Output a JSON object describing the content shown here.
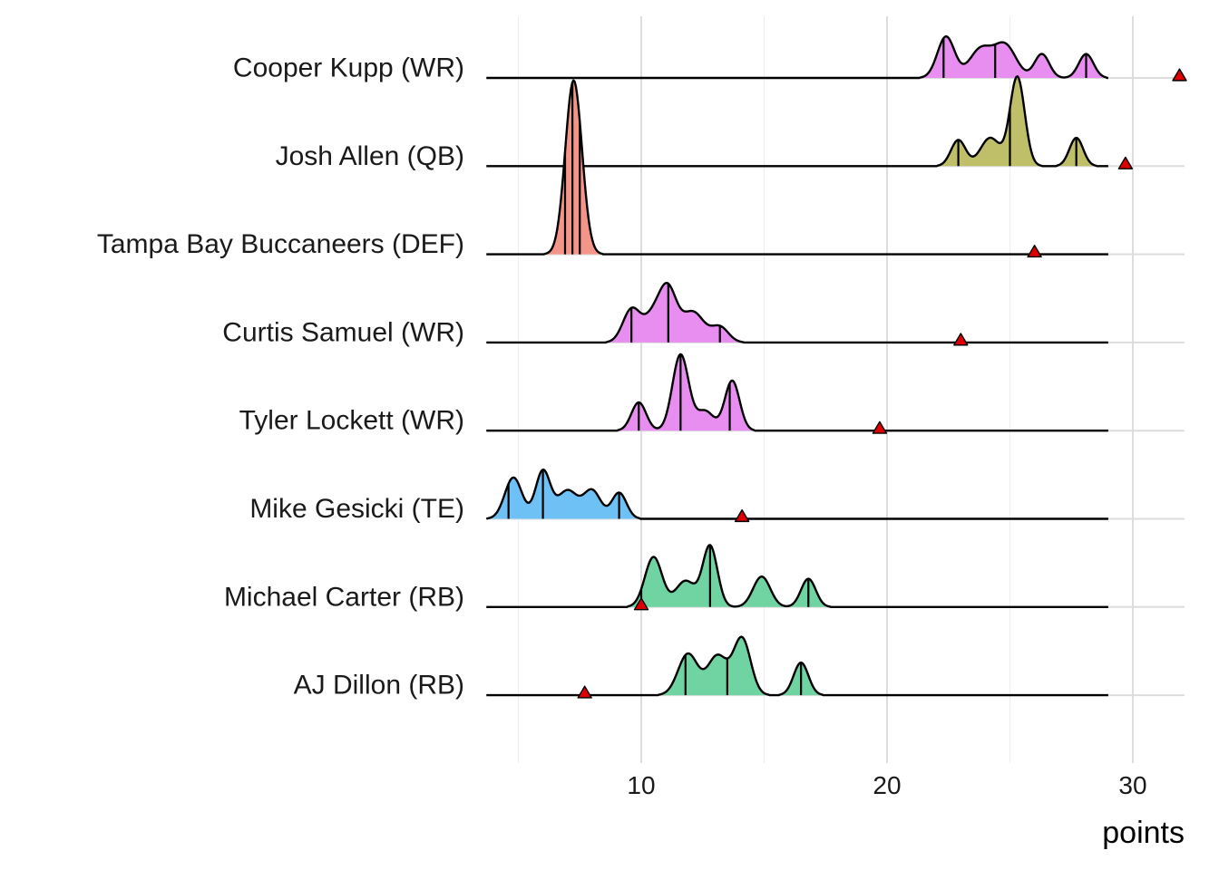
{
  "chart_data": {
    "type": "ridgeline",
    "xlabel": "points",
    "x_ticks": [
      10,
      20,
      30
    ],
    "xlim": [
      3.7,
      32.1
    ],
    "grid": true,
    "legend": "none",
    "quantile_lines": true,
    "marker_color": "#dd0000",
    "rows": [
      {
        "label": "Cooper Kupp (WR)",
        "color": "#e88ef0",
        "range": [
          3.7,
          29.0
        ],
        "peaks": [
          [
            22.4,
            0.38,
            0.35
          ],
          [
            23.8,
            0.26,
            0.45
          ],
          [
            24.8,
            0.3,
            0.45
          ],
          [
            26.3,
            0.22,
            0.3
          ],
          [
            28.1,
            0.22,
            0.3
          ]
        ],
        "quantiles": [
          22.3,
          24.4,
          28.1
        ],
        "actual": 31.9
      },
      {
        "label": "Josh Allen (QB)",
        "color": "#bfbf6a",
        "range": [
          3.7,
          29.0
        ],
        "peaks": [
          [
            22.9,
            0.24,
            0.3
          ],
          [
            24.2,
            0.26,
            0.4
          ],
          [
            25.3,
            0.82,
            0.3
          ],
          [
            27.7,
            0.26,
            0.28
          ]
        ],
        "quantiles": [
          22.9,
          25.0,
          27.7
        ],
        "actual": 29.7
      },
      {
        "label": "Tampa Bay Buccaneers (DEF)",
        "color": "#f4958a",
        "range": [
          3.7,
          29.0
        ],
        "peaks": [
          [
            7.25,
            1.6,
            0.34
          ]
        ],
        "quantiles": [
          6.9,
          7.2,
          7.5
        ],
        "actual": 26.0
      },
      {
        "label": "Curtis Samuel (WR)",
        "color": "#e88ef0",
        "range": [
          3.7,
          29.0
        ],
        "peaks": [
          [
            9.6,
            0.3,
            0.35
          ],
          [
            10.5,
            0.24,
            0.4
          ],
          [
            11.1,
            0.44,
            0.35
          ],
          [
            12.1,
            0.28,
            0.45
          ],
          [
            13.2,
            0.14,
            0.35
          ]
        ],
        "quantiles": [
          9.6,
          11.1,
          13.2
        ],
        "actual": 23.0
      },
      {
        "label": "Tyler Lockett (WR)",
        "color": "#e88ef0",
        "range": [
          3.7,
          29.0
        ],
        "peaks": [
          [
            9.9,
            0.26,
            0.3
          ],
          [
            11.6,
            0.7,
            0.33
          ],
          [
            12.6,
            0.18,
            0.35
          ],
          [
            13.7,
            0.46,
            0.3
          ]
        ],
        "quantiles": [
          9.9,
          11.6,
          13.6
        ],
        "actual": 19.7
      },
      {
        "label": "Mike Gesicki (TE)",
        "color": "#6ec1f5",
        "range": [
          3.7,
          29.0
        ],
        "peaks": [
          [
            4.8,
            0.38,
            0.35
          ],
          [
            6.0,
            0.44,
            0.3
          ],
          [
            7.0,
            0.26,
            0.4
          ],
          [
            8.0,
            0.26,
            0.35
          ],
          [
            9.1,
            0.24,
            0.3
          ]
        ],
        "quantiles": [
          4.6,
          6.0,
          9.1
        ],
        "actual": 14.1
      },
      {
        "label": "Michael Carter (RB)",
        "color": "#6fd4a2",
        "range": [
          3.7,
          29.0
        ],
        "peaks": [
          [
            10.5,
            0.46,
            0.35
          ],
          [
            11.8,
            0.24,
            0.4
          ],
          [
            12.8,
            0.56,
            0.3
          ],
          [
            14.9,
            0.28,
            0.35
          ],
          [
            16.8,
            0.26,
            0.3
          ]
        ],
        "quantiles": [
          10.0,
          12.8,
          16.8
        ],
        "actual": 10.0
      },
      {
        "label": "AJ Dillon (RB)",
        "color": "#6fd4a2",
        "range": [
          3.7,
          29.0
        ],
        "peaks": [
          [
            11.9,
            0.38,
            0.4
          ],
          [
            13.1,
            0.36,
            0.4
          ],
          [
            14.1,
            0.52,
            0.35
          ],
          [
            16.5,
            0.3,
            0.3
          ]
        ],
        "quantiles": [
          11.8,
          13.5,
          16.5
        ],
        "actual": 7.7
      }
    ]
  }
}
